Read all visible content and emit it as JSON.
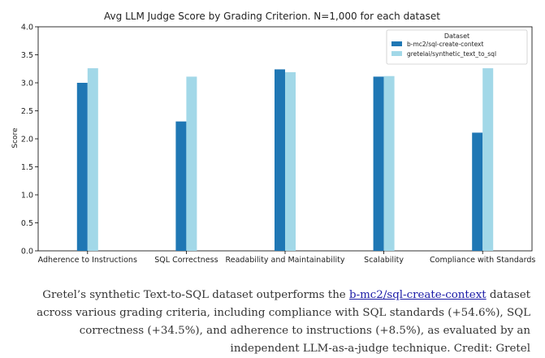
{
  "chart_data": {
    "type": "bar",
    "title": "Avg LLM Judge Score by Grading Criterion. N=1,000 for each dataset",
    "xlabel": "",
    "ylabel": "Score",
    "ylim": [
      0,
      4.0
    ],
    "yticks": [
      "0.0",
      "0.5",
      "1.0",
      "1.5",
      "2.0",
      "2.5",
      "3.0",
      "3.5",
      "4.0"
    ],
    "categories": [
      "Adherence to Instructions",
      "SQL Correctness",
      "Readability and Maintainability",
      "Scalability",
      "Compliance with Standards"
    ],
    "legend_title": "Dataset",
    "legend_position": "top-right",
    "grid": false,
    "series": [
      {
        "name": "b-mc2/sql-create-context",
        "color": "#1f77b4",
        "values": [
          3.0,
          2.31,
          3.24,
          3.11,
          2.11
        ]
      },
      {
        "name": "gretelai/synthetic_text_to_sql",
        "color": "#a2d8e8",
        "values": [
          3.26,
          3.11,
          3.19,
          3.12,
          3.26
        ]
      }
    ]
  },
  "caption": {
    "before": "Gretel’s synthetic Text-to-SQL dataset outperforms the ",
    "link": "b-mc2/sql-create-context",
    "after": " dataset across various grading criteria, including compliance with SQL standards (+54.6%), SQL correctness (+34.5%), and adherence to instructions (+8.5%), as evaluated by an independent LLM-as-a-judge technique. Credit: Gretel"
  }
}
